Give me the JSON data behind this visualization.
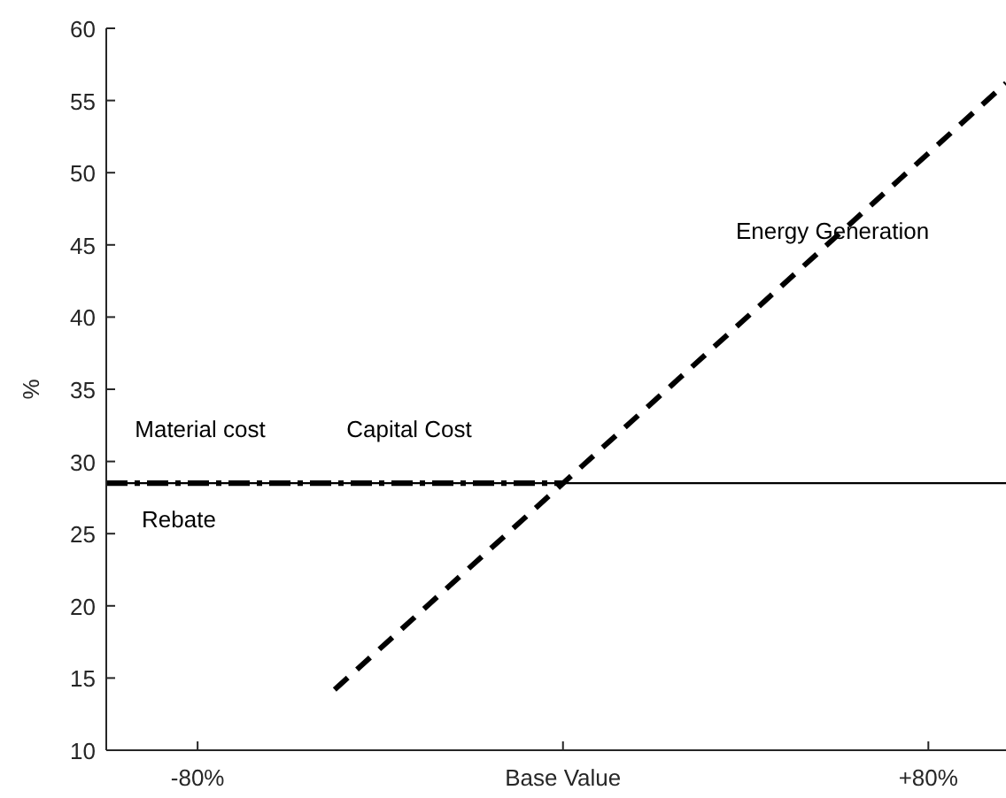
{
  "chart_data": {
    "type": "line",
    "ylabel": "%",
    "xlim": [
      -100,
      97
    ],
    "ylim": [
      10,
      60
    ],
    "xticks": [
      {
        "value": -80,
        "label": "-80%"
      },
      {
        "value": 0,
        "label": "Base Value"
      },
      {
        "value": 80,
        "label": "+80%"
      }
    ],
    "yticks": [
      10,
      15,
      20,
      25,
      30,
      35,
      40,
      45,
      50,
      55,
      60
    ],
    "grid": false,
    "marker": "none",
    "series": [
      {
        "color": "#000000",
        "x": [
          -100,
          97
        ],
        "values": [
          28.5,
          28.5
        ],
        "line_style": "solid"
      },
      {
        "color": "#000000",
        "x": [
          -100,
          0
        ],
        "values": [
          28.5,
          28.5
        ],
        "line_style": "dashdot"
      },
      {
        "color": "#000000",
        "x": [
          -50,
          97
        ],
        "values": [
          14.2,
          56.2
        ],
        "line_style": "dashed"
      }
    ],
    "annotations": [
      "Material cost",
      "Capital Cost",
      "Rebate",
      {
        "text": "Energy Generation",
        "x": 59,
        "y": 46
      }
    ]
  }
}
